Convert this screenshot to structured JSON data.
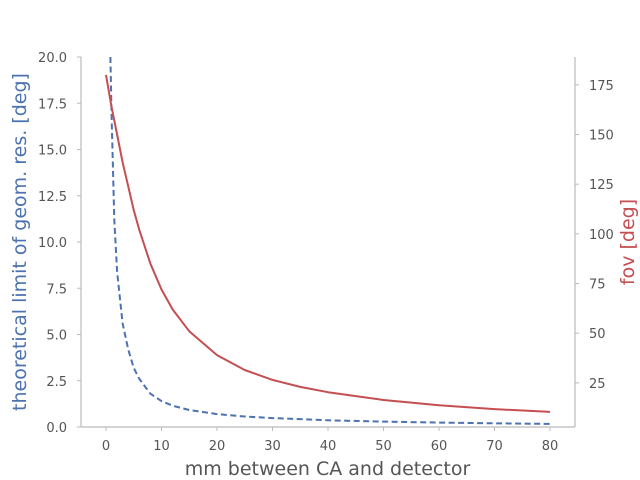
{
  "chart_data": {
    "type": "line",
    "title": "",
    "xlabel": "mm between CA and detector",
    "ylabel_left": "theoretical limit of geom. res. [deg]",
    "ylabel_right": "fov [deg]",
    "xlim": [
      -4.5,
      84.5
    ],
    "ylim_left": [
      0,
      20
    ],
    "ylim_right": [
      2.8,
      189
    ],
    "x_ticks": [
      0,
      10,
      20,
      30,
      40,
      50,
      60,
      70,
      80
    ],
    "x_tick_labels": [
      "0",
      "10",
      "20",
      "30",
      "40",
      "50",
      "60",
      "70",
      "80"
    ],
    "y_left_ticks": [
      0,
      2.5,
      5,
      7.5,
      10,
      12.5,
      15,
      17.5,
      20
    ],
    "y_left_tick_labels": [
      "0.0",
      "2.5",
      "5.0",
      "7.5",
      "10.0",
      "12.5",
      "15.0",
      "17.5",
      "20.0"
    ],
    "y_right_ticks": [
      25,
      50,
      75,
      100,
      125,
      150,
      175
    ],
    "y_right_tick_labels": [
      "25",
      "50",
      "75",
      "100",
      "125",
      "150",
      "175"
    ],
    "grid": false,
    "series": [
      {
        "axis": "left",
        "style": "dashed",
        "color": "#4c72b0",
        "x": [
          0.8,
          1,
          1.5,
          2,
          3,
          4,
          5,
          6,
          8,
          10,
          12,
          15,
          20,
          25,
          30,
          40,
          50,
          60,
          70,
          80
        ],
        "y": [
          20,
          17.0,
          11.2,
          8.4,
          5.6,
          4.2,
          3.2,
          2.6,
          1.8,
          1.4,
          1.15,
          0.92,
          0.7,
          0.57,
          0.48,
          0.36,
          0.29,
          0.24,
          0.2,
          0.17
        ]
      },
      {
        "axis": "right",
        "style": "solid",
        "color": "#c44e52",
        "x": [
          0,
          1,
          2,
          3,
          4,
          5,
          6,
          8,
          10,
          12,
          15,
          20,
          25,
          30,
          35,
          40,
          50,
          60,
          70,
          80
        ],
        "y": [
          180,
          164,
          150,
          136,
          124,
          112,
          102,
          85,
          72,
          62,
          51,
          39,
          31.5,
          26.5,
          23,
          20.3,
          16.4,
          13.7,
          11.8,
          10.4
        ]
      }
    ]
  }
}
